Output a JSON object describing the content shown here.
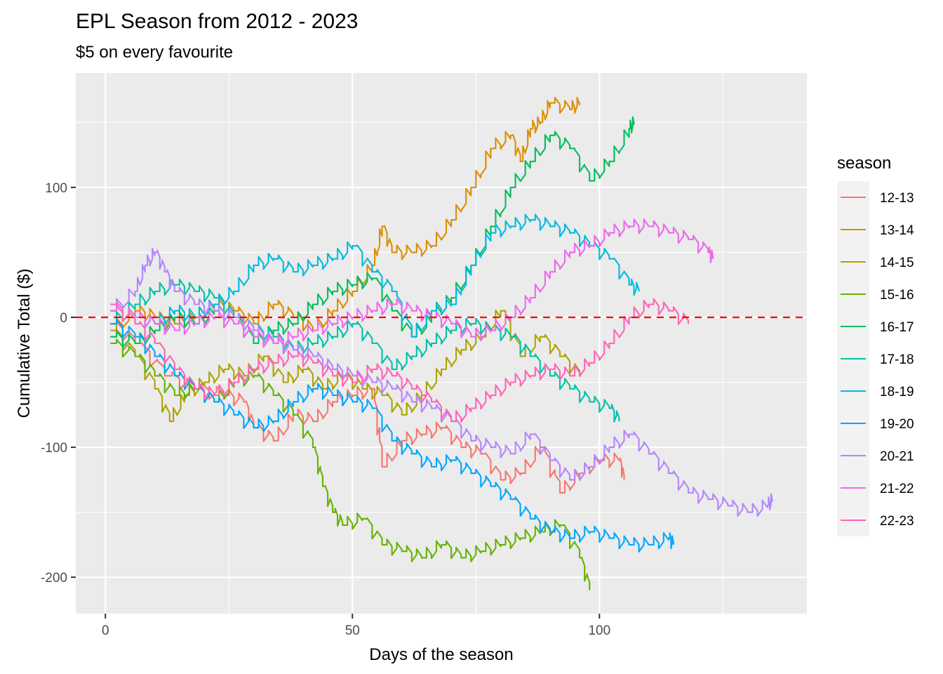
{
  "chart_data": {
    "type": "line",
    "title": "EPL Season from 2012 - 2023",
    "subtitle": "$5 on every favourite",
    "xlabel": "Days of the season",
    "ylabel": "Cumulative Total ($)",
    "xlim": [
      -6,
      142
    ],
    "ylim": [
      -228,
      188
    ],
    "x_ticks": [
      0,
      50,
      100
    ],
    "y_ticks": [
      -200,
      -100,
      0,
      100
    ],
    "x_tick_labels": [
      "0",
      "50",
      "100"
    ],
    "y_tick_labels": [
      "-200",
      "-100",
      "0",
      "100"
    ],
    "grid": true,
    "reference_line": {
      "y": 0,
      "color": "#ff0000",
      "style": "dashed"
    },
    "legend_title": "season",
    "legend_position": "right",
    "series": [
      {
        "name": "12-13",
        "color": "#F8766D",
        "x": [
          1,
          6,
          12,
          18,
          24,
          28,
          30,
          34,
          38,
          42,
          46,
          50,
          54,
          56,
          60,
          64,
          68,
          72,
          76,
          80,
          84,
          88,
          92,
          96,
          100,
          104,
          105
        ],
        "y": [
          -5,
          -20,
          -45,
          -55,
          -60,
          -65,
          -85,
          -95,
          -75,
          -80,
          -65,
          -60,
          -55,
          -115,
          -95,
          -90,
          -85,
          -100,
          -105,
          -125,
          -120,
          -100,
          -135,
          -120,
          -110,
          -110,
          -125
        ]
      },
      {
        "name": "13-14",
        "color": "#DB8E00",
        "x": [
          1,
          6,
          10,
          14,
          18,
          22,
          26,
          30,
          34,
          38,
          42,
          46,
          50,
          54,
          56,
          58,
          62,
          66,
          70,
          74,
          78,
          82,
          84,
          86,
          88,
          90,
          94,
          96
        ],
        "y": [
          -10,
          5,
          0,
          -5,
          0,
          10,
          5,
          -5,
          10,
          0,
          -10,
          5,
          20,
          40,
          70,
          50,
          50,
          55,
          75,
          100,
          130,
          140,
          120,
          145,
          150,
          165,
          160,
          165
        ]
      },
      {
        "name": "14-15",
        "color": "#AEA200",
        "x": [
          1,
          6,
          10,
          13,
          16,
          20,
          24,
          28,
          32,
          36,
          40,
          44,
          48,
          52,
          56,
          60,
          64,
          68,
          72,
          76,
          80,
          84,
          88,
          92,
          96
        ],
        "y": [
          -10,
          -30,
          -55,
          -80,
          -60,
          -50,
          -40,
          -45,
          -30,
          -50,
          -40,
          -55,
          -45,
          -55,
          -60,
          -75,
          -60,
          -40,
          -25,
          -15,
          5,
          -30,
          -15,
          -30,
          -45
        ]
      },
      {
        "name": "15-16",
        "color": "#64B200",
        "x": [
          1,
          6,
          10,
          14,
          18,
          22,
          26,
          30,
          34,
          38,
          42,
          44,
          46,
          48,
          52,
          56,
          60,
          64,
          68,
          72,
          76,
          80,
          84,
          88,
          92,
          96,
          98
        ],
        "y": [
          -20,
          -30,
          -45,
          -60,
          -55,
          -65,
          -50,
          -45,
          -60,
          -75,
          -100,
          -130,
          -150,
          -160,
          -155,
          -175,
          -180,
          -185,
          -175,
          -185,
          -180,
          -175,
          -170,
          -165,
          -160,
          -185,
          -210
        ]
      },
      {
        "name": "16-17",
        "color": "#00BD5C",
        "x": [
          1,
          6,
          10,
          14,
          18,
          22,
          26,
          30,
          34,
          38,
          42,
          46,
          50,
          54,
          58,
          62,
          66,
          70,
          74,
          78,
          82,
          86,
          90,
          94,
          98,
          102,
          106,
          107
        ],
        "y": [
          -15,
          -20,
          -10,
          0,
          -5,
          5,
          0,
          -20,
          -10,
          -5,
          10,
          20,
          25,
          30,
          5,
          -15,
          0,
          15,
          40,
          70,
          100,
          120,
          140,
          130,
          105,
          120,
          145,
          150
        ]
      },
      {
        "name": "17-18",
        "color": "#00C1A7",
        "x": [
          1,
          6,
          10,
          14,
          18,
          22,
          26,
          30,
          34,
          38,
          42,
          46,
          50,
          54,
          58,
          62,
          66,
          70,
          74,
          78,
          82,
          86,
          90,
          94,
          98,
          102,
          104
        ],
        "y": [
          -5,
          10,
          20,
          25,
          20,
          15,
          0,
          -10,
          -15,
          -25,
          -20,
          -15,
          -5,
          -20,
          -40,
          -30,
          -20,
          -10,
          -5,
          -10,
          -15,
          -30,
          -45,
          -55,
          -65,
          -70,
          -80
        ]
      },
      {
        "name": "18-19",
        "color": "#00BADE",
        "x": [
          1,
          6,
          10,
          14,
          18,
          22,
          26,
          30,
          34,
          38,
          42,
          46,
          50,
          54,
          58,
          62,
          66,
          70,
          74,
          78,
          82,
          86,
          90,
          94,
          98,
          102,
          106,
          108
        ],
        "y": [
          5,
          0,
          -5,
          5,
          0,
          10,
          20,
          40,
          45,
          35,
          40,
          45,
          55,
          35,
          20,
          -15,
          5,
          10,
          40,
          65,
          70,
          75,
          70,
          65,
          55,
          45,
          25,
          20
        ]
      },
      {
        "name": "19-20",
        "color": "#00A6FF",
        "x": [
          1,
          6,
          10,
          14,
          18,
          22,
          26,
          30,
          34,
          38,
          42,
          46,
          50,
          54,
          58,
          62,
          66,
          70,
          74,
          78,
          82,
          86,
          90,
          94,
          98,
          102,
          106,
          110,
          114,
          115
        ],
        "y": [
          -5,
          -15,
          -30,
          -45,
          -55,
          -65,
          -75,
          -85,
          -80,
          -65,
          -55,
          -60,
          -65,
          -70,
          -95,
          -105,
          -115,
          -110,
          -120,
          -130,
          -140,
          -155,
          -165,
          -170,
          -165,
          -170,
          -175,
          -175,
          -170,
          -175
        ]
      },
      {
        "name": "20-21",
        "color": "#B385FF",
        "x": [
          1,
          6,
          8,
          10,
          12,
          14,
          18,
          22,
          26,
          30,
          34,
          38,
          42,
          46,
          50,
          54,
          58,
          62,
          66,
          70,
          74,
          78,
          82,
          86,
          90,
          94,
          98,
          102,
          106,
          110,
          114,
          118,
          122,
          126,
          130,
          134,
          135
        ],
        "y": [
          5,
          20,
          40,
          50,
          35,
          20,
          10,
          5,
          0,
          -10,
          -20,
          -25,
          -30,
          -40,
          -45,
          -50,
          -55,
          -65,
          -70,
          -80,
          -95,
          -100,
          -105,
          -90,
          -110,
          -125,
          -115,
          -100,
          -90,
          -105,
          -120,
          -135,
          -140,
          -145,
          -150,
          -145,
          -140
        ]
      },
      {
        "name": "21-22",
        "color": "#EF67EB",
        "x": [
          1,
          6,
          10,
          14,
          18,
          22,
          26,
          30,
          34,
          38,
          42,
          46,
          50,
          54,
          58,
          62,
          66,
          70,
          74,
          78,
          82,
          86,
          90,
          94,
          98,
          102,
          106,
          110,
          114,
          118,
          122,
          123
        ],
        "y": [
          5,
          0,
          -5,
          -10,
          -5,
          0,
          -5,
          -15,
          -20,
          -15,
          -10,
          -5,
          0,
          5,
          10,
          5,
          0,
          -5,
          -15,
          -10,
          0,
          15,
          35,
          50,
          55,
          65,
          70,
          70,
          65,
          60,
          50,
          45
        ]
      },
      {
        "name": "22-23",
        "color": "#FF63B6",
        "x": [
          1,
          6,
          10,
          14,
          18,
          22,
          26,
          30,
          34,
          38,
          42,
          46,
          50,
          54,
          58,
          62,
          66,
          70,
          74,
          78,
          82,
          86,
          90,
          94,
          98,
          102,
          106,
          110,
          114,
          118
        ],
        "y": [
          10,
          -5,
          -20,
          -40,
          -55,
          -60,
          -50,
          -40,
          -35,
          -30,
          -35,
          -45,
          -50,
          -40,
          -45,
          -55,
          -65,
          -80,
          -70,
          -60,
          -50,
          -45,
          -40,
          -45,
          -35,
          -20,
          0,
          10,
          5,
          -5
        ]
      }
    ]
  }
}
